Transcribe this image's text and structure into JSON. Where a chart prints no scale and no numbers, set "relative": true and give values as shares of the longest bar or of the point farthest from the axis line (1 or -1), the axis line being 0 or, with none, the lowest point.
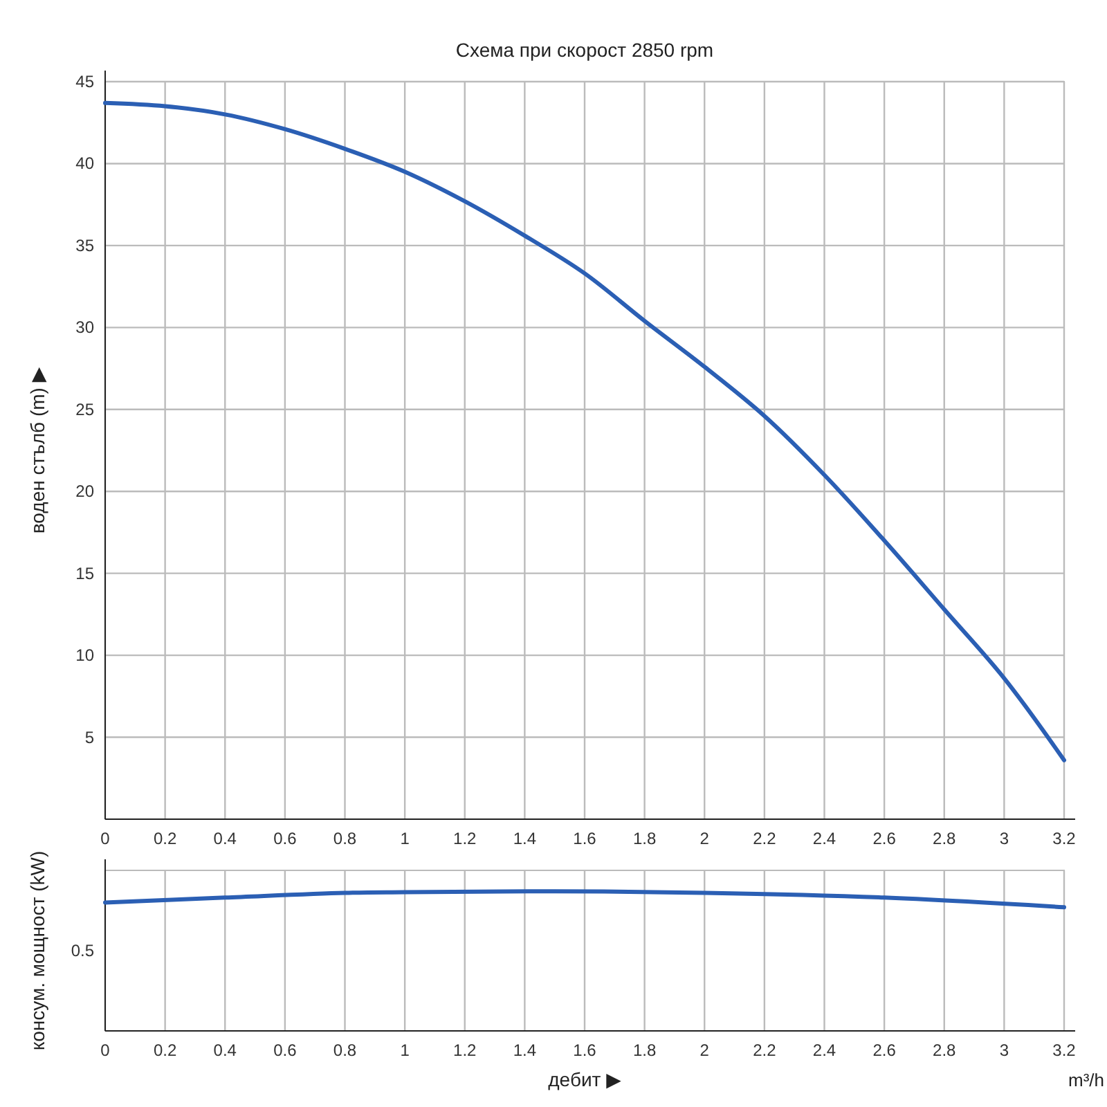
{
  "chart_data": [
    {
      "type": "line",
      "title": "Схема при скорост 2850 rpm",
      "ylabel": "воден стълб (m) ▶",
      "x": [
        0,
        0.2,
        0.4,
        0.6,
        0.8,
        1,
        1.2,
        1.4,
        1.6,
        1.8,
        2,
        2.2,
        2.4,
        2.6,
        2.8,
        3,
        3.2
      ],
      "series": [
        {
          "color": "#2b5fb4",
          "values": [
            43.7,
            43.5,
            43.0,
            42.1,
            40.9,
            39.5,
            37.7,
            35.6,
            33.3,
            30.4,
            27.6,
            24.6,
            21.0,
            17.0,
            12.8,
            8.6,
            3.6
          ]
        }
      ],
      "xlim": [
        0,
        3.2
      ],
      "xticks": [
        0,
        0.2,
        0.4,
        0.6,
        0.8,
        1,
        1.2,
        1.4,
        1.6,
        1.8,
        2,
        2.2,
        2.4,
        2.6,
        2.8,
        3,
        3.2
      ],
      "ylim": [
        0,
        45
      ],
      "yticks": [
        5,
        10,
        15,
        20,
        25,
        30,
        35,
        40,
        45
      ],
      "grid": true,
      "marker": "none",
      "line_style": "solid"
    },
    {
      "type": "line",
      "relative": true,
      "ylabel": "консум. мощност (kW)",
      "xlabel": "дебит ▶",
      "annotations": [
        "0.5",
        "m³/h"
      ],
      "x": [
        0,
        0.4,
        0.8,
        1,
        1.5,
        2,
        2.6,
        3.2
      ],
      "series": [
        {
          "color": "#2b5fb4",
          "values": [
            0.92,
            0.955,
            0.989,
            0.994,
            1,
            0.989,
            0.955,
            0.886
          ]
        }
      ],
      "xlim": [
        0,
        3.2
      ],
      "xticks": [
        0,
        0.2,
        0.4,
        0.6,
        0.8,
        1,
        1.2,
        1.4,
        1.6,
        1.8,
        2,
        2.2,
        2.4,
        2.6,
        2.8,
        3,
        3.2
      ],
      "grid": "x",
      "marker": "none",
      "line_style": "solid"
    }
  ]
}
